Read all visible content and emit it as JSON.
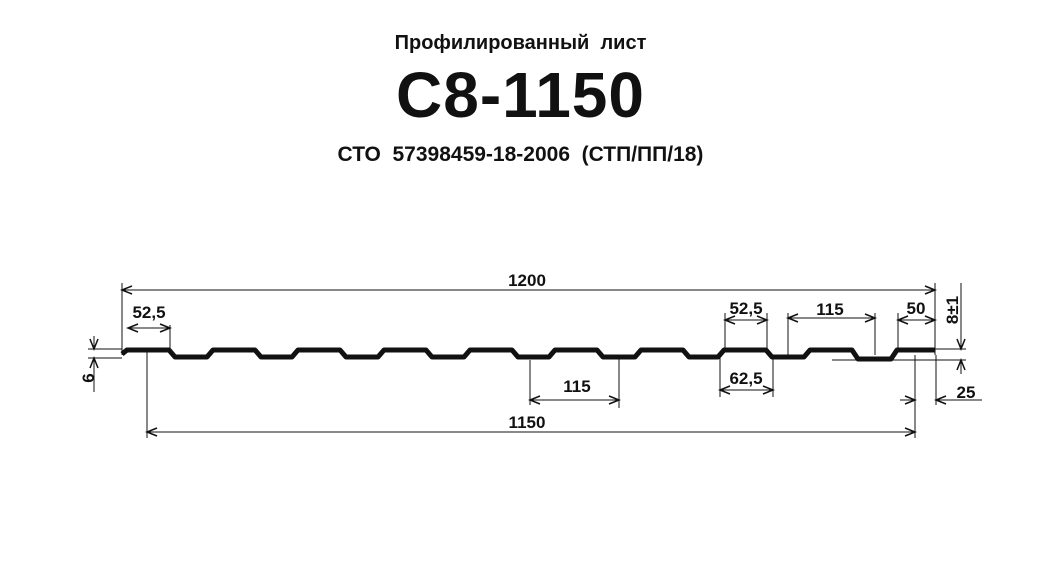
{
  "header": {
    "subtitle": "Профилированный  лист",
    "title": "С8-1150",
    "standard": "СТО  57398459-18-2006  (СТП/ПП/18)"
  },
  "drawing": {
    "dimensions": {
      "total_width": "1200",
      "useful_width": "1150",
      "left_top_flat": "52,5",
      "right_top_flat": "52,5",
      "rib_pitch_bottom": "115",
      "rib_pitch_top": "115",
      "edge_flat": "50",
      "rib_base": "62,5",
      "overlap": "25",
      "height_tolerance": "8±1",
      "edge_height": "6"
    },
    "line_color": "#111111"
  }
}
